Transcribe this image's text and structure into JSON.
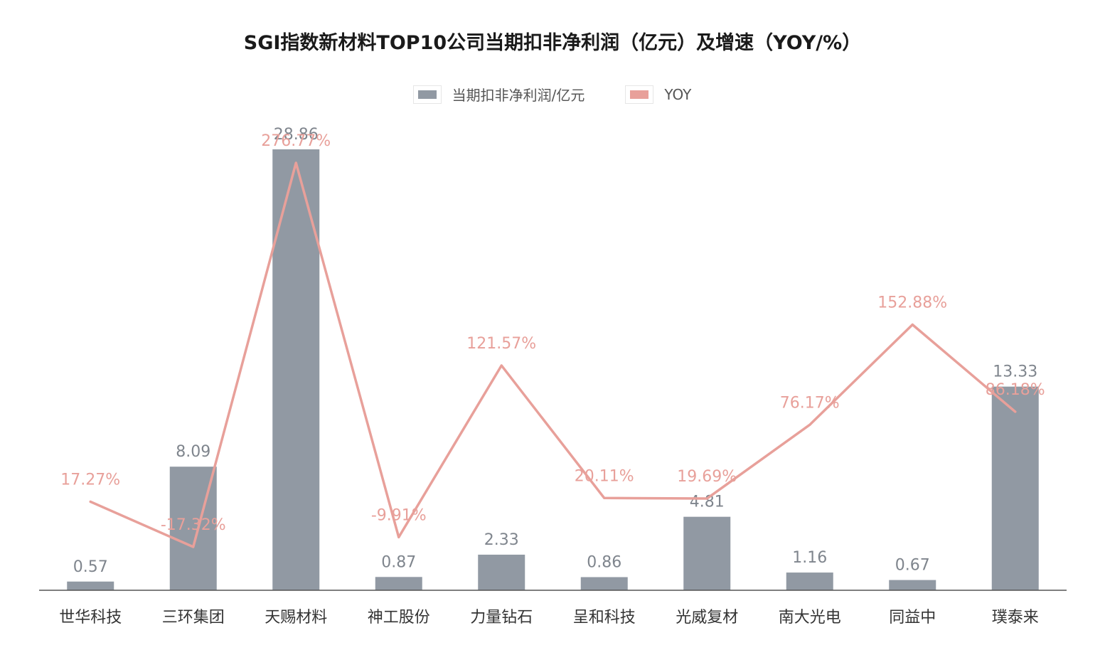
{
  "chart_data": {
    "type": "bar",
    "title": "SGI指数新材料TOP10公司当期扣非净利润（亿元）及增速（YOY/%）",
    "categories": [
      "世华科技",
      "三环集团",
      "天赐材料",
      "神工股份",
      "力量钻石",
      "呈和科技",
      "光威复材",
      "南大光电",
      "同益中",
      "璞泰来"
    ],
    "series": [
      {
        "name": "当期扣非净利润/亿元",
        "kind": "bar",
        "color": "#9199a3",
        "values": [
          0.57,
          8.09,
          28.86,
          0.87,
          2.33,
          0.86,
          4.81,
          1.16,
          0.67,
          13.33
        ],
        "labels": [
          "0.57",
          "8.09",
          "28.86",
          "0.87",
          "2.33",
          "0.86",
          "4.81",
          "1.16",
          "0.67",
          "13.33"
        ]
      },
      {
        "name": "YOY",
        "kind": "line",
        "color": "#e8a09a",
        "values": [
          17.27,
          -17.32,
          276.77,
          -9.91,
          121.57,
          20.11,
          19.69,
          76.17,
          152.88,
          86.18
        ],
        "labels": [
          "17.27%",
          "-17.32%",
          "276.77%",
          "-9.91%",
          "121.57%",
          "20.11%",
          "19.69%",
          "76.17%",
          "152.88%",
          "86.18%"
        ]
      }
    ],
    "bar_axis_range": [
      0,
      28.86
    ],
    "line_axis_range": [
      -17.32,
      276.77
    ],
    "grid": false,
    "legend_position": "top-center"
  }
}
